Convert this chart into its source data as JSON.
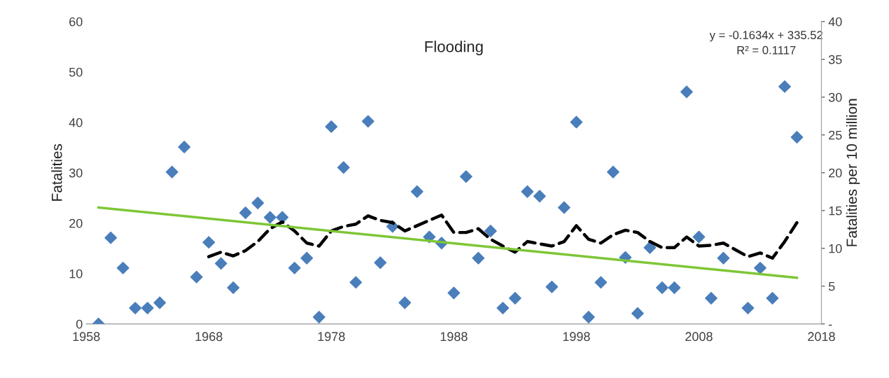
{
  "chart_data": {
    "type": "scatter",
    "title": "Flooding",
    "ylabel": "Fatalities",
    "y2label": "Fatalities per 10 million",
    "annotations": [
      "y = -0.1634x + 335.52",
      "R² = 0.1117"
    ],
    "xlim": [
      1958,
      2018
    ],
    "xticks": [
      1958,
      1968,
      1978,
      1988,
      1998,
      2008,
      2018
    ],
    "ylim": [
      0,
      60
    ],
    "yticks": [
      0,
      10,
      20,
      30,
      40,
      50,
      60
    ],
    "y2lim": [
      0,
      40
    ],
    "y2ticks": [
      {
        "value": 0,
        "label": "-"
      },
      5,
      10,
      15,
      20,
      25,
      30,
      35,
      40
    ],
    "grid": false,
    "legend": false,
    "series": [
      {
        "axis": "y2",
        "color": "#4a7ebb",
        "marker": "diamond",
        "x": [
          1959,
          1960,
          1961,
          1962,
          1963,
          1964,
          1965,
          1966,
          1967,
          1968,
          1969,
          1970,
          1971,
          1972,
          1973,
          1974,
          1975,
          1976,
          1977,
          1978,
          1979,
          1980,
          1981,
          1982,
          1983,
          1984,
          1985,
          1986,
          1987,
          1988,
          1989,
          1990,
          1991,
          1992,
          1993,
          1994,
          1995,
          1996,
          1997,
          1998,
          1999,
          2000,
          2001,
          2002,
          2003,
          2004,
          2005,
          2006,
          2007,
          2008,
          2009,
          2010,
          2012,
          2013,
          2014,
          2015,
          2016
        ],
        "values": [
          0,
          11.4,
          7.4,
          2.1,
          2.1,
          2.8,
          20.1,
          23.4,
          6.2,
          10.8,
          8.0,
          4.8,
          14.7,
          16.0,
          14.1,
          14.1,
          7.4,
          8.7,
          0.9,
          26.1,
          20.7,
          5.5,
          26.8,
          8.1,
          12.9,
          2.8,
          17.5,
          11.5,
          10.7,
          4.1,
          19.5,
          8.7,
          12.3,
          2.1,
          3.4,
          17.5,
          16.9,
          4.9,
          15.4,
          26.7,
          0.9,
          5.5,
          20.1,
          8.8,
          1.4,
          10.1,
          4.8,
          4.8,
          30.7,
          11.5,
          3.4,
          8.7,
          2.1,
          7.4,
          3.4,
          31.4,
          24.7
        ]
      },
      {
        "type": "line",
        "axis": "y2",
        "color": "#000000",
        "line_style": "dashed",
        "marker": "none",
        "x": [
          1968,
          1969,
          1970,
          1971,
          1972,
          1973,
          1974,
          1975,
          1976,
          1977,
          1978,
          1979,
          1980,
          1981,
          1982,
          1983,
          1984,
          1985,
          1986,
          1987,
          1988,
          1989,
          1990,
          1991,
          1992,
          1993,
          1994,
          1995,
          1996,
          1997,
          1998,
          1999,
          2000,
          2001,
          2002,
          2003,
          2004,
          2005,
          2006,
          2007,
          2008,
          2009,
          2010,
          2011,
          2012,
          2013,
          2014,
          2015,
          2016
        ],
        "values": [
          8.9,
          9.5,
          9.0,
          9.7,
          10.9,
          12.6,
          13.5,
          12.3,
          10.7,
          10.3,
          12.3,
          12.9,
          13.2,
          14.3,
          13.7,
          13.4,
          12.3,
          13.0,
          13.7,
          14.4,
          12.1,
          12.1,
          12.6,
          11.2,
          10.3,
          9.5,
          10.9,
          10.6,
          10.3,
          10.9,
          13.0,
          11.2,
          10.7,
          11.8,
          12.4,
          12.1,
          10.9,
          10.1,
          10.1,
          11.5,
          10.3,
          10.4,
          10.7,
          9.8,
          8.9,
          9.4,
          8.7,
          10.9,
          13.4
        ]
      },
      {
        "type": "line",
        "axis": "y2",
        "color": "#7ec636",
        "line_style": "solid",
        "marker": "none",
        "x": [
          1959,
          2016
        ],
        "values": [
          15.4,
          6.1
        ]
      }
    ]
  }
}
